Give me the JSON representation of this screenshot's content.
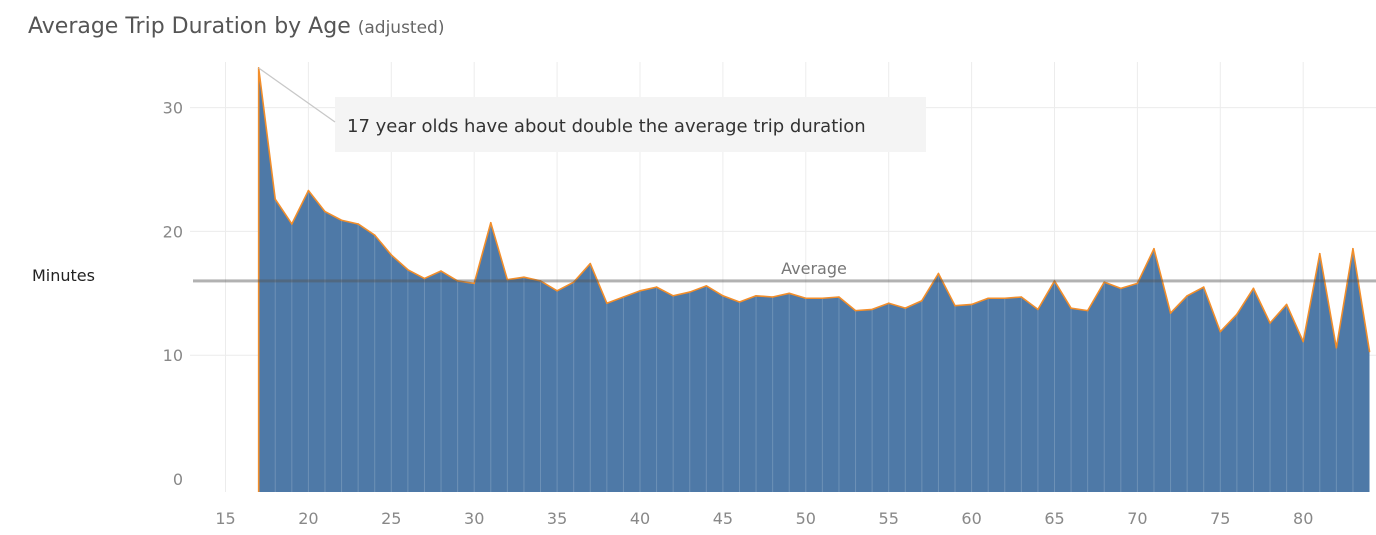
{
  "header": {
    "title": "Average Trip Duration by Age",
    "subtitle": "(adjusted)"
  },
  "chart_data": {
    "type": "area",
    "title": "Average Trip Duration by Age",
    "subtitle": "(adjusted)",
    "xlabel": "",
    "ylabel": "Minutes",
    "xlim": [
      14,
      84
    ],
    "ylim": [
      -0.8,
      35
    ],
    "x_ticks": [
      15,
      20,
      25,
      30,
      35,
      40,
      45,
      50,
      55,
      60,
      65,
      70,
      75,
      80
    ],
    "y_ticks": [
      0,
      10,
      20,
      30
    ],
    "grid": true,
    "fill_color": "#4e79a7",
    "line_color": "#f28e2b",
    "series": [
      {
        "x": [
          17,
          18,
          19,
          20,
          21,
          22,
          23,
          24,
          25,
          26,
          27,
          28,
          29,
          30,
          31,
          32,
          33,
          34,
          35,
          36,
          37,
          38,
          39,
          40,
          41,
          42,
          43,
          44,
          45,
          46,
          47,
          48,
          49,
          50,
          51,
          52,
          53,
          54,
          55,
          56,
          57,
          58,
          59,
          60,
          61,
          62,
          63,
          64,
          65,
          66,
          67,
          68,
          69,
          70,
          71,
          72,
          73,
          74,
          75,
          76,
          77,
          78,
          79,
          80,
          81,
          82,
          83,
          84
        ],
        "values": [
          33.2,
          22.6,
          20.6,
          23.3,
          21.6,
          20.9,
          20.6,
          19.7,
          18.1,
          16.9,
          16.2,
          16.8,
          16.0,
          15.8,
          20.7,
          16.1,
          16.3,
          16.0,
          15.2,
          15.9,
          17.4,
          14.2,
          14.7,
          15.2,
          15.5,
          14.8,
          15.1,
          15.6,
          14.8,
          14.3,
          14.8,
          14.7,
          15.0,
          14.6,
          14.6,
          14.7,
          13.6,
          13.7,
          14.2,
          13.8,
          14.4,
          16.6,
          14.0,
          14.1,
          14.6,
          14.6,
          14.7,
          13.7,
          16.0,
          13.8,
          13.6,
          15.9,
          15.4,
          15.8,
          18.6,
          13.4,
          14.8,
          15.5,
          11.9,
          13.3,
          15.4,
          12.6,
          14.1,
          11.1,
          18.2,
          10.6,
          18.6,
          10.3
        ]
      }
    ],
    "reference_line": {
      "label": "Average",
      "value": 16.0,
      "color": "#9a9a9a"
    },
    "annotation": {
      "text": "17 year olds have about double the average trip duration",
      "x": 17,
      "y": 33.2
    }
  }
}
